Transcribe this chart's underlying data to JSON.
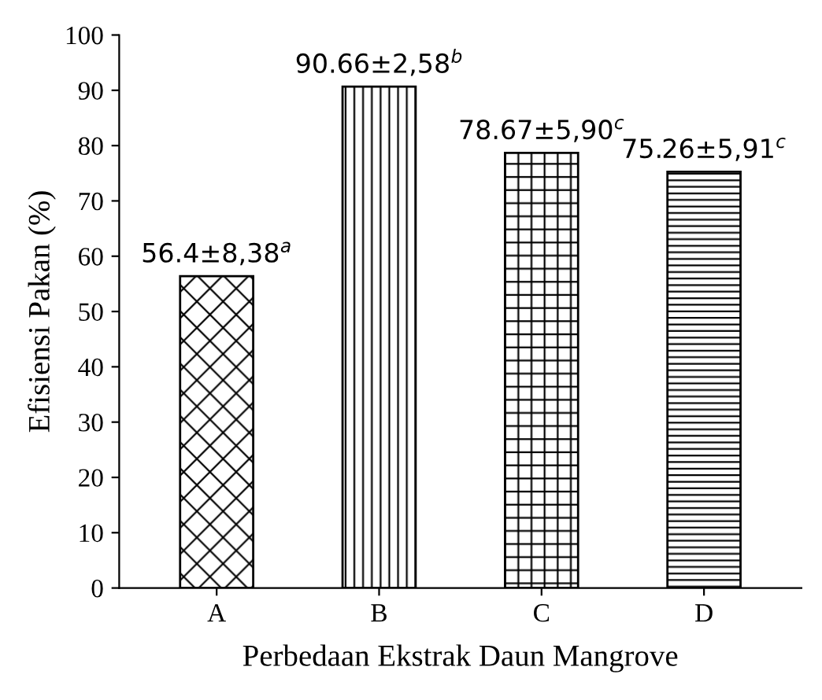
{
  "chart_data": {
    "type": "bar",
    "xlabel": "Perbedaan Ekstrak Daun Mangrove",
    "ylabel": "Efisiensi Pakan (%)",
    "categories": [
      "A",
      "B",
      "C",
      "D"
    ],
    "values": [
      56.4,
      90.66,
      78.67,
      75.26
    ],
    "value_labels": [
      "56.4±8,38$^{a}$",
      "90.66±2,58$^{b}$",
      "78.67±5,90$^{c}$",
      "75.26±5,91$^{c}$"
    ],
    "colors": [
      "#000000",
      "#000000",
      "#000000",
      "#000000"
    ],
    "ylim": [
      0,
      100
    ],
    "yticks": [
      0,
      10,
      20,
      30,
      40,
      50,
      60,
      70,
      80,
      90,
      100
    ],
    "grid": false,
    "legend": false
  }
}
